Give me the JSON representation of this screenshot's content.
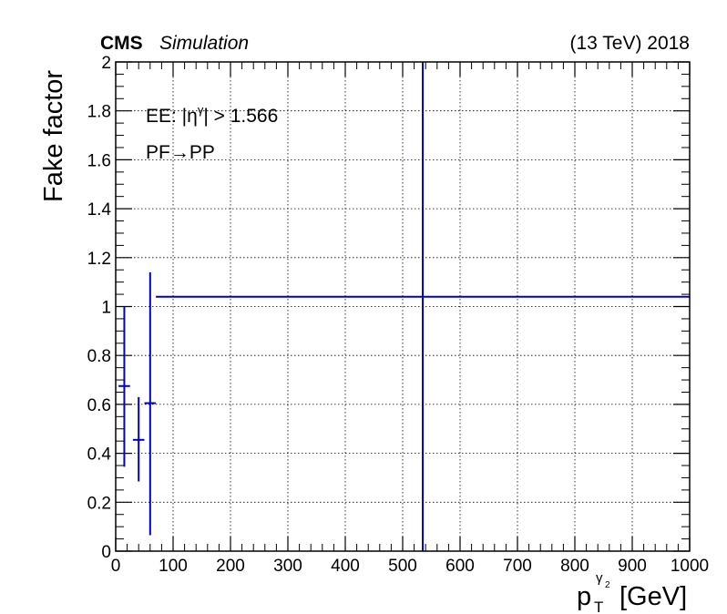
{
  "header": {
    "experiment": "CMS",
    "status": "Simulation",
    "energy_year": "(13 TeV) 2018"
  },
  "annotations": {
    "region_prefix": "EE: |η",
    "region_sup": "γ",
    "region_suffix": "| > 1.566",
    "transition": "PF→PP"
  },
  "axes": {
    "ylabel": "Fake factor",
    "xlabel_base": "p",
    "xlabel_sub": "T",
    "xlabel_sup": "γ",
    "xlabel_sup_sub": "2",
    "xlabel_unit": "[GeV]"
  },
  "colors": {
    "series": "#0000cc",
    "grid": "#000000",
    "axis": "#000000"
  },
  "chart_data": {
    "type": "scatter",
    "xlim": [
      0,
      1000
    ],
    "ylim": [
      0,
      2
    ],
    "xticks": [
      "0",
      "100",
      "200",
      "300",
      "400",
      "500",
      "600",
      "700",
      "800",
      "900",
      "1000"
    ],
    "yticks": [
      "0",
      "0.2",
      "0.4",
      "0.6",
      "0.8",
      "1",
      "1.2",
      "1.4",
      "1.6",
      "1.8",
      "2"
    ],
    "grid": true,
    "series": [
      {
        "points": [
          {
            "x": 15,
            "xlo": 5,
            "xhi": 25,
            "y": 0.675,
            "ylo": 0.345,
            "yhi": 1.0
          },
          {
            "x": 40,
            "xlo": 30,
            "xhi": 50,
            "y": 0.455,
            "ylo": 0.285,
            "yhi": 0.63
          },
          {
            "x": 60,
            "xlo": 50,
            "xhi": 70,
            "y": 0.605,
            "ylo": 0.065,
            "yhi": 1.14
          },
          {
            "x": 535,
            "xlo": 70,
            "xhi": 1000,
            "y": 1.04,
            "ylo": 0.0,
            "yhi": 2.0
          }
        ]
      }
    ]
  }
}
